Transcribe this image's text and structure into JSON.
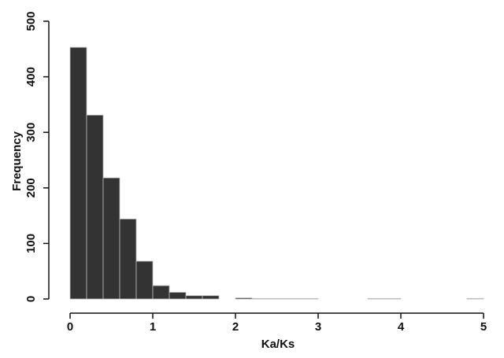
{
  "chart_data": {
    "type": "histogram",
    "x_label": "Ka/Ks",
    "y_label": "Frequency",
    "bins": [
      0,
      0.2,
      0.4,
      0.6,
      0.8,
      1,
      1.2,
      1.4,
      1.6,
      1.8,
      2,
      2.2,
      2.4,
      2.6,
      2.8,
      3,
      3.2,
      3.4,
      3.6,
      3.8,
      4,
      4.2,
      4.4,
      4.6,
      4.8,
      5
    ],
    "counts": [
      453,
      331,
      218,
      144,
      68,
      24,
      12,
      6,
      6,
      0,
      2,
      1,
      1,
      1,
      1,
      0,
      0,
      0,
      1,
      1,
      0,
      0,
      0,
      0,
      1
    ],
    "color": "#333333",
    "xlim": [
      0,
      5
    ],
    "xticks": [
      0,
      1,
      2,
      3,
      4,
      5
    ],
    "ylim": [
      0,
      500
    ],
    "yticks": [
      0,
      100,
      200,
      300,
      400,
      500
    ]
  }
}
